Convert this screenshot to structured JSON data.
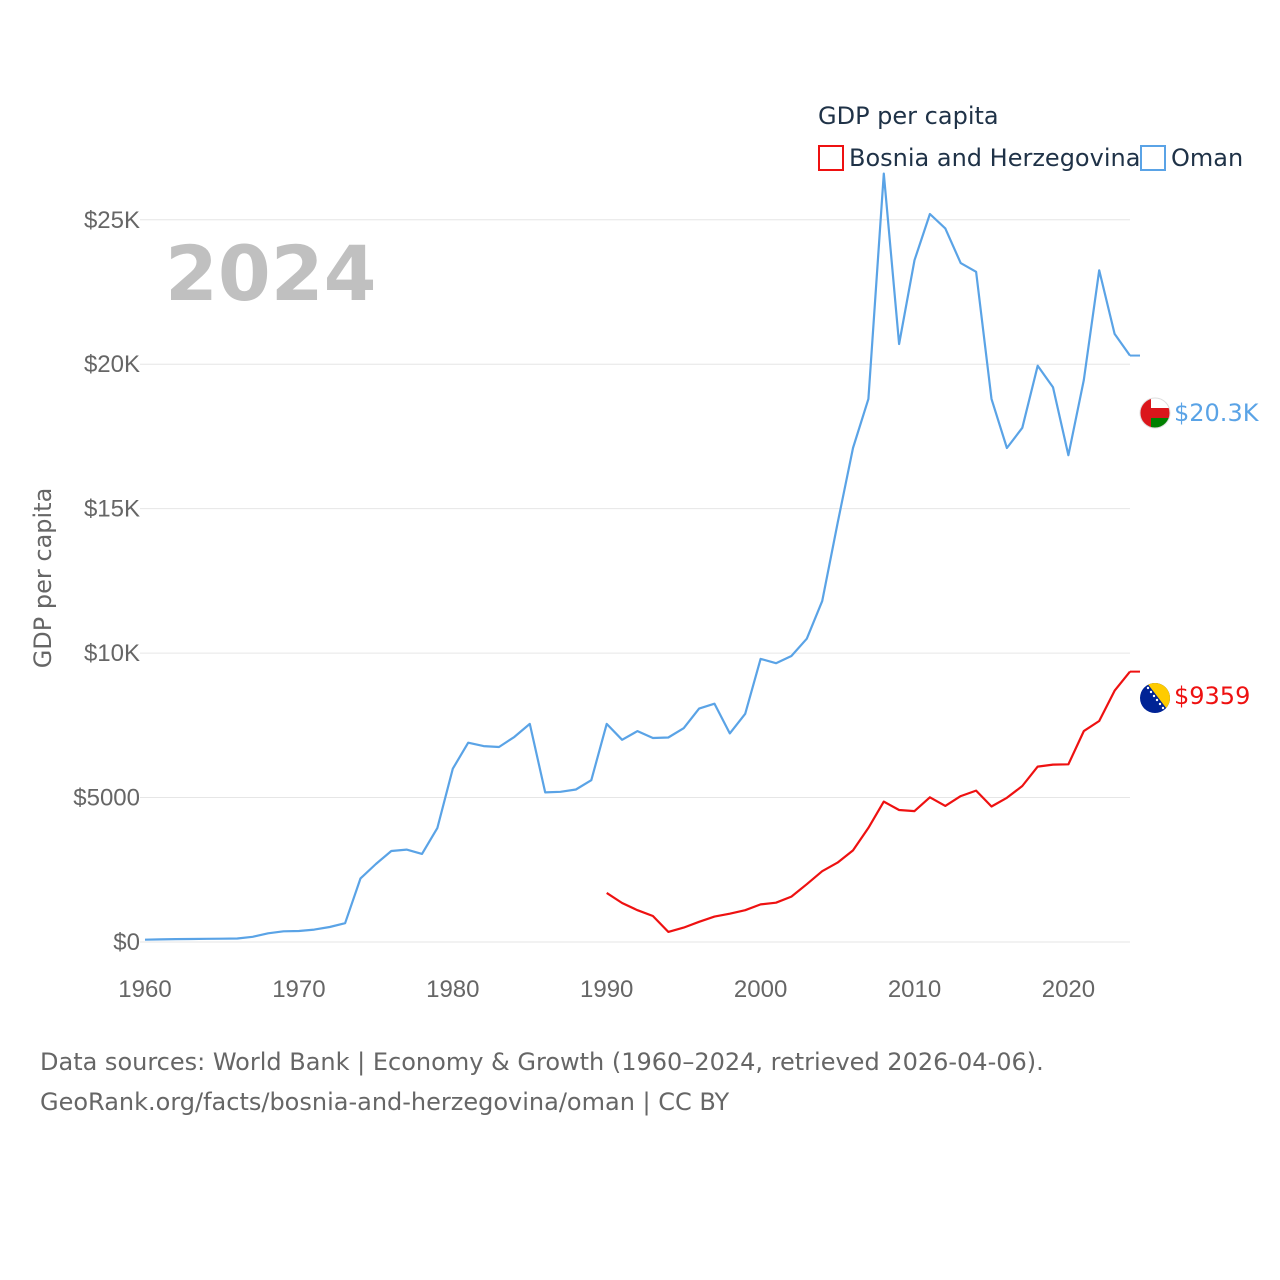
{
  "chart_data": {
    "type": "line",
    "title": "GDP per capita",
    "current_year_label": "2024",
    "ylabel": "GDP per capita",
    "xlabel": "",
    "xlim": [
      1960,
      2024
    ],
    "ylim": [
      0,
      27000
    ],
    "x_ticks": [
      1960,
      1970,
      1980,
      1990,
      2000,
      2010,
      2020
    ],
    "x_tick_labels": [
      "1960",
      "1970",
      "1980",
      "1990",
      "2000",
      "2010",
      "2020"
    ],
    "y_ticks": [
      0,
      5000,
      10000,
      15000,
      20000,
      25000
    ],
    "y_tick_labels": [
      "$0",
      "$5000",
      "$10K",
      "$15K",
      "$20K",
      "$25K"
    ],
    "grid": true,
    "legend_position": "top-right",
    "series": [
      {
        "name": "Bosnia and Herzegovina",
        "color": "#ee1111",
        "end_label": "$9359",
        "flag_icon": "bosnia-flag-icon",
        "x": [
          1990,
          1991,
          1992,
          1993,
          1994,
          1995,
          1996,
          1997,
          1998,
          1999,
          2000,
          2001,
          2002,
          2003,
          2004,
          2005,
          2006,
          2007,
          2008,
          2009,
          2010,
          2011,
          2012,
          2013,
          2014,
          2015,
          2016,
          2017,
          2018,
          2019,
          2020,
          2021,
          2022,
          2023,
          2024
        ],
        "values": [
          1700,
          1350,
          1100,
          900,
          350,
          500,
          700,
          880,
          980,
          1100,
          1300,
          1360,
          1570,
          2000,
          2450,
          2750,
          3170,
          3950,
          4860,
          4570,
          4530,
          5010,
          4710,
          5050,
          5240,
          4690,
          4990,
          5400,
          6070,
          6140,
          6150,
          7300,
          7650,
          8700,
          9359
        ]
      },
      {
        "name": "Oman",
        "color": "#5aa3e6",
        "end_label": "$20.3K",
        "flag_icon": "oman-flag-icon",
        "x": [
          1960,
          1961,
          1962,
          1963,
          1964,
          1965,
          1966,
          1967,
          1968,
          1969,
          1970,
          1971,
          1972,
          1973,
          1974,
          1975,
          1976,
          1977,
          1978,
          1979,
          1980,
          1981,
          1982,
          1983,
          1984,
          1985,
          1986,
          1987,
          1988,
          1989,
          1990,
          1991,
          1992,
          1993,
          1994,
          1995,
          1996,
          1997,
          1998,
          1999,
          2000,
          2001,
          2002,
          2003,
          2004,
          2005,
          2006,
          2007,
          2008,
          2009,
          2010,
          2011,
          2012,
          2013,
          2014,
          2015,
          2016,
          2017,
          2018,
          2019,
          2020,
          2021,
          2022,
          2023,
          2024
        ],
        "values": [
          80,
          90,
          100,
          105,
          110,
          115,
          120,
          180,
          300,
          370,
          380,
          430,
          520,
          650,
          2200,
          2700,
          3150,
          3200,
          3050,
          3950,
          6000,
          6900,
          6780,
          6750,
          7100,
          7550,
          5180,
          5200,
          5280,
          5600,
          7550,
          7000,
          7300,
          7060,
          7080,
          7400,
          8080,
          8250,
          7220,
          7900,
          9800,
          9650,
          9900,
          10500,
          11800,
          14500,
          17100,
          18800,
          26600,
          20700,
          23600,
          25200,
          24700,
          23500,
          23200,
          18800,
          17100,
          17800,
          19950,
          19200,
          16850,
          19450,
          23250,
          21050,
          20300
        ]
      }
    ]
  },
  "source_line_1": "Data sources: World Bank | Economy & Growth (1960–2024, retrieved 2026-04-06).",
  "source_line_2": "GeoRank.org/facts/bosnia-and-herzegovina/oman | CC BY"
}
